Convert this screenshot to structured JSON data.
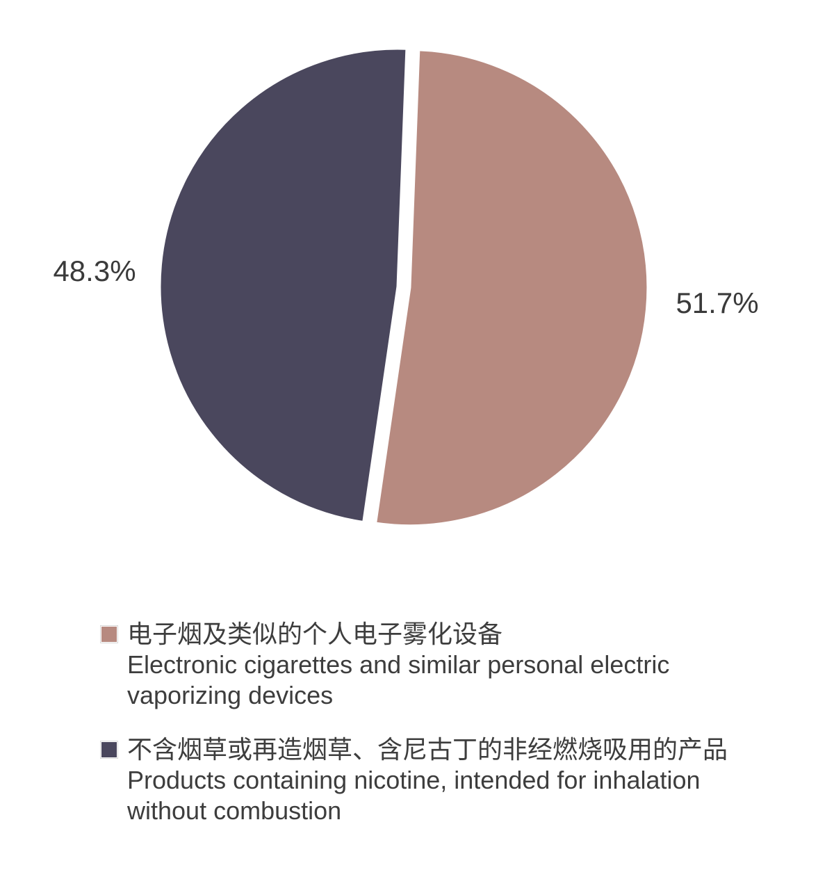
{
  "chart_data": {
    "type": "pie",
    "slices": [
      {
        "label": "电子烟及类似的个人电子雾化设备",
        "label_en": "Electronic cigarettes and similar personal electric vaporizing devices",
        "value": 51.7,
        "value_label": "51.7%",
        "color": "#b78a80",
        "exploded": true
      },
      {
        "label": "不含烟草或再造烟草、含尼古丁的非经燃烧吸用的产品",
        "label_en": "Products containing nicotine, intended for inhalation without combustion",
        "value": 48.3,
        "value_label": "48.3%",
        "color": "#4a475d",
        "exploded": false
      }
    ],
    "legend_placement": "bottom"
  },
  "legend": {
    "items": [
      {
        "zh": "电子烟及类似的个人电子雾化设备",
        "en1": "Electronic cigarettes and similar personal electric",
        "en2": "vaporizing devices"
      },
      {
        "zh": "不含烟草或再造烟草、含尼古丁的非经燃烧吸用的产品",
        "en1": "Products containing nicotine, intended for inhalation",
        "en2": "without combustion"
      }
    ]
  }
}
